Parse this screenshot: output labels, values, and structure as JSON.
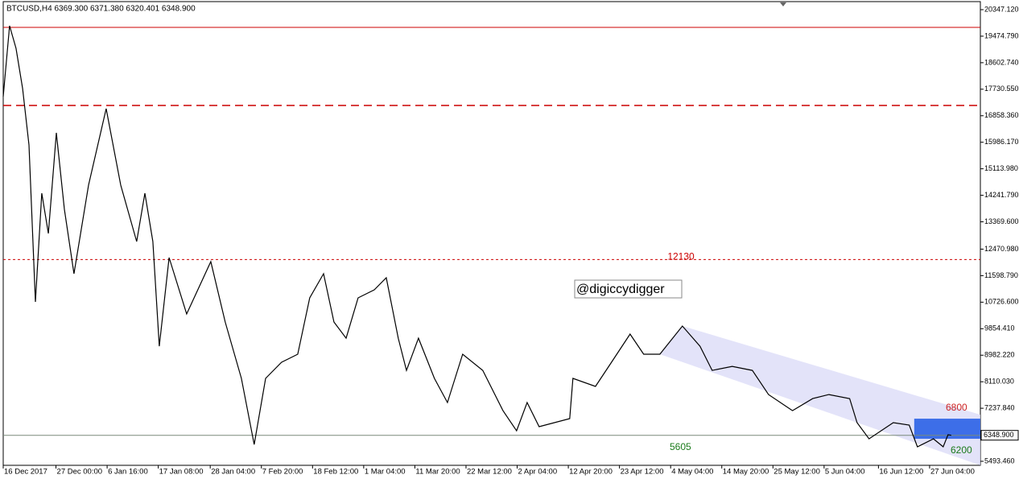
{
  "chart_data": {
    "type": "line",
    "title": "BTCUSD,H4  6369.300 6371.380 6320.401 6348.900",
    "watermark": "@digiccydigger",
    "x": [
      0,
      32,
      64,
      97,
      129,
      161,
      193,
      226,
      266,
      306,
      354,
      427,
      515,
      588,
      668,
      709,
      749,
      781,
      830,
      918,
      1039,
      1111,
      1192,
      1256,
      1313,
      1393,
      1474,
      1534,
      1603,
      1655,
      1716,
      1776,
      1857,
      1917,
      1977,
      2018,
      2078,
      2158,
      2223,
      2299,
      2400,
      2501,
      2569,
      2622,
      2682,
      2835,
      2851,
      2964,
      3044,
      3137,
      3205,
      3286,
      3399,
      3487,
      3548,
      3648,
      3749,
      3830,
      3950,
      4051,
      4132,
      4236,
      4273,
      4333,
      4454,
      4534,
      4575,
      4655,
      4704,
      4728,
      4744
    ],
    "series": [
      {
        "name": "BTCUSD",
        "color": "#000000",
        "values": [
          17487,
          19817,
          19076,
          17752,
          15898,
          10735,
          14310,
          12986,
          16296,
          13780,
          11662,
          14574,
          17090,
          14574,
          12721,
          14310,
          12721,
          9278,
          12191,
          10338,
          12059,
          10073,
          8220,
          6048,
          8220,
          8749,
          9014,
          10867,
          11662,
          10073,
          9543,
          10867,
          11132,
          11529,
          9543,
          8484,
          9543,
          8220,
          7425,
          9014,
          8484,
          7160,
          6498,
          7425,
          6631,
          6896,
          8220,
          7955,
          8749,
          9676,
          9014,
          9014,
          9941,
          9278,
          8484,
          8616,
          8484,
          7689,
          7160,
          7557,
          7689,
          7557,
          6763,
          6233,
          6763,
          6684,
          5969,
          6233,
          5969,
          6366,
          6349
        ]
      }
    ],
    "xlim": [
      0,
      4890
    ],
    "xticks": [
      {
        "value": 0,
        "label": "16 Dec 2017"
      },
      {
        "value": 264,
        "label": "27 Dec 00:00"
      },
      {
        "value": 520,
        "label": "6 Jan 16:00"
      },
      {
        "value": 776,
        "label": "17 Jan 08:00"
      },
      {
        "value": 1036,
        "label": "28 Jan 04:00"
      },
      {
        "value": 1292,
        "label": "7 Feb 20:00"
      },
      {
        "value": 1548,
        "label": "18 Feb 12:00"
      },
      {
        "value": 1804,
        "label": "1 Mar 04:00"
      },
      {
        "value": 2060,
        "label": "11 Mar 20:00"
      },
      {
        "value": 2316,
        "label": "22 Mar 12:00"
      },
      {
        "value": 2572,
        "label": "2 Apr 04:00"
      },
      {
        "value": 2828,
        "label": "12 Apr 20:00"
      },
      {
        "value": 3084,
        "label": "23 Apr 12:00"
      },
      {
        "value": 3340,
        "label": "4 May 04:00"
      },
      {
        "value": 3596,
        "label": "14 May 20:00"
      },
      {
        "value": 3852,
        "label": "25 May 12:00"
      },
      {
        "value": 4108,
        "label": "5 Jun 04:00"
      },
      {
        "value": 4380,
        "label": "16 Jun 12:00"
      },
      {
        "value": 4636,
        "label": "27 Jun 04:00"
      }
    ],
    "ylim": [
      5361,
      20612
    ],
    "yticks": [
      {
        "value": 20347.12,
        "label": "20347.120"
      },
      {
        "value": 19474.79,
        "label": "19474.790"
      },
      {
        "value": 18602.74,
        "label": "18602.740"
      },
      {
        "value": 17730.55,
        "label": "17730.550"
      },
      {
        "value": 16858.36,
        "label": "16858.360"
      },
      {
        "value": 15986.17,
        "label": "15986.170"
      },
      {
        "value": 15113.98,
        "label": "15113.980"
      },
      {
        "value": 14241.79,
        "label": "14241.790"
      },
      {
        "value": 13369.6,
        "label": "13369.600"
      },
      {
        "value": 12470.98,
        "label": "12470.980"
      },
      {
        "value": 11598.79,
        "label": "11598.790"
      },
      {
        "value": 10726.6,
        "label": "10726.600"
      },
      {
        "value": 9854.41,
        "label": "9854.410"
      },
      {
        "value": 8982.22,
        "label": "8982.220"
      },
      {
        "value": 8110.03,
        "label": "8110.030"
      },
      {
        "value": 7237.84,
        "label": "7237.840"
      },
      {
        "value": 5493.46,
        "label": "5493.460"
      }
    ],
    "last_price": {
      "value": 6348.9,
      "label": "6348.900"
    },
    "levels": [
      {
        "value": 19764,
        "color": "#cc0000",
        "style": "solid"
      },
      {
        "value": 17196,
        "color": "#cc0000",
        "style": "dashed"
      },
      {
        "value": 12130,
        "color": "#cc0000",
        "style": "dotted",
        "label": "12130"
      }
    ],
    "channel": {
      "color": "#dcdcf8",
      "x": [
        3399,
        4890,
        4890,
        3286
      ],
      "values": [
        9941,
        7027,
        5360,
        9014
      ]
    },
    "zone": {
      "color": "#3d6ee8",
      "x_start": 4559,
      "low": 6233,
      "high": 6895,
      "label_high": "6800",
      "label_low": "6200"
    },
    "support_label": "5605"
  }
}
